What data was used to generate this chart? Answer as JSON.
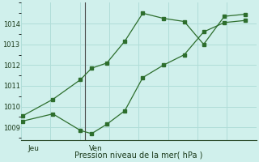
{
  "title": "Pression niveau de la mer( hPa )",
  "xlabel_jeu": "Jeu",
  "xlabel_ven": "Ven",
  "background_color": "#d0f0ec",
  "grid_color": "#b0ddd8",
  "line_color": "#2d6e2d",
  "ylim": [
    1008.4,
    1015.0
  ],
  "yticks": [
    1009,
    1010,
    1011,
    1012,
    1013,
    1014
  ],
  "xlim": [
    0,
    8.5
  ],
  "jeu_x": 0.25,
  "ven_x": 2.45,
  "sep_x": 2.3,
  "line1_x": [
    0.05,
    1.15,
    2.15,
    2.55,
    3.1,
    3.75,
    4.4,
    5.15,
    5.9,
    6.6,
    7.35,
    8.1
  ],
  "line1_y": [
    1009.3,
    1009.65,
    1008.85,
    1008.7,
    1009.15,
    1009.8,
    1011.4,
    1012.0,
    1012.5,
    1013.6,
    1014.05,
    1014.15
  ],
  "line2_x": [
    0.05,
    1.15,
    2.15,
    2.55,
    3.1,
    3.75,
    4.4,
    5.15,
    5.9,
    6.6,
    7.35,
    8.1
  ],
  "line2_y": [
    1009.55,
    1010.35,
    1011.3,
    1011.85,
    1012.1,
    1013.15,
    1014.5,
    1014.25,
    1014.1,
    1013.0,
    1014.35,
    1014.45
  ]
}
